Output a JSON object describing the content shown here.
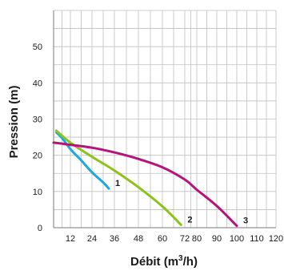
{
  "chart_data": {
    "type": "line",
    "xlabel": "Débit (m",
    "xlabel_sup": "3",
    "xlabel_end": "/h)",
    "ylabel": "Pression (m)",
    "x_tick_labels": [
      "12",
      "24",
      "36",
      "48",
      "60",
      "72",
      "80",
      "90",
      "100",
      "110",
      "120"
    ],
    "y_tick_labels": [
      "0",
      "10",
      "20",
      "30",
      "40",
      "50"
    ],
    "grid": true,
    "series": [
      {
        "name": "1",
        "color": "#1ea7dc",
        "points": [
          [
            2,
            26.3
          ],
          [
            6,
            24.8
          ],
          [
            12,
            21.7
          ],
          [
            18,
            18.6
          ],
          [
            24,
            15.3
          ],
          [
            30,
            12.5
          ],
          [
            33,
            10.8
          ]
        ]
      },
      {
        "name": "2",
        "color": "#8cc21d",
        "points": [
          [
            2,
            26.8
          ],
          [
            12,
            23.5
          ],
          [
            24,
            19.6
          ],
          [
            36,
            15.8
          ],
          [
            48,
            11.2
          ],
          [
            60,
            5.9
          ],
          [
            70,
            0.8
          ]
        ]
      },
      {
        "name": "3",
        "color": "#b3157a",
        "points": [
          [
            0,
            23.5
          ],
          [
            12,
            22.9
          ],
          [
            24,
            22.1
          ],
          [
            36,
            20.8
          ],
          [
            48,
            19.0
          ],
          [
            60,
            16.7
          ],
          [
            72,
            13.3
          ],
          [
            80,
            10.5
          ],
          [
            90,
            6.0
          ],
          [
            100,
            0.5
          ]
        ]
      }
    ]
  }
}
